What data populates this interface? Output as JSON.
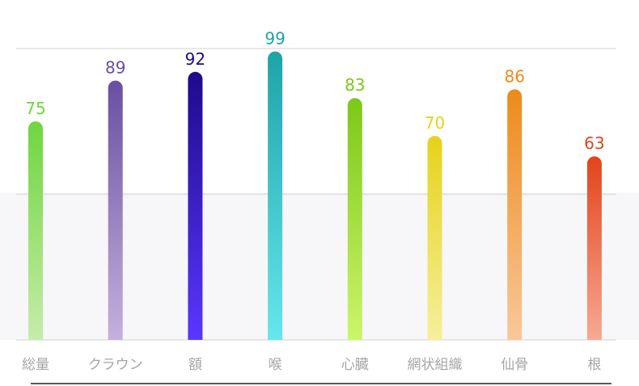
{
  "chart_data": {
    "type": "bar",
    "categories": [
      "総量",
      "クラウン",
      "額",
      "喉",
      "心臓",
      "網状組織",
      "仙骨",
      "根"
    ],
    "values": [
      75,
      89,
      92,
      99,
      83,
      70,
      86,
      63
    ],
    "ylim": [
      0,
      100
    ],
    "grid": true,
    "title": "",
    "xlabel": "",
    "ylabel": "",
    "colors": [
      {
        "top": "#6fd63e",
        "bottom": "#c6ecaa"
      },
      {
        "top": "#6a4fa2",
        "bottom": "#c4b1dc"
      },
      {
        "top": "#1f0a8a",
        "bottom": "#5a36ff"
      },
      {
        "top": "#1ea3a8",
        "bottom": "#66e6ee"
      },
      {
        "top": "#7cc818",
        "bottom": "#ccf56a"
      },
      {
        "top": "#e6d21a",
        "bottom": "#f6ef9b"
      },
      {
        "top": "#ee8a1a",
        "bottom": "#f8c89a"
      },
      {
        "top": "#e3441a",
        "bottom": "#f7a894"
      }
    ],
    "label_colors": [
      "#6fd63e",
      "#6a4fa2",
      "#1f0a8a",
      "#1ea3a8",
      "#7cc818",
      "#e6d21a",
      "#ee8a1a",
      "#e3441a"
    ],
    "category_label_color": "#a6a6a6",
    "grid_color": "#d9d9d9"
  }
}
